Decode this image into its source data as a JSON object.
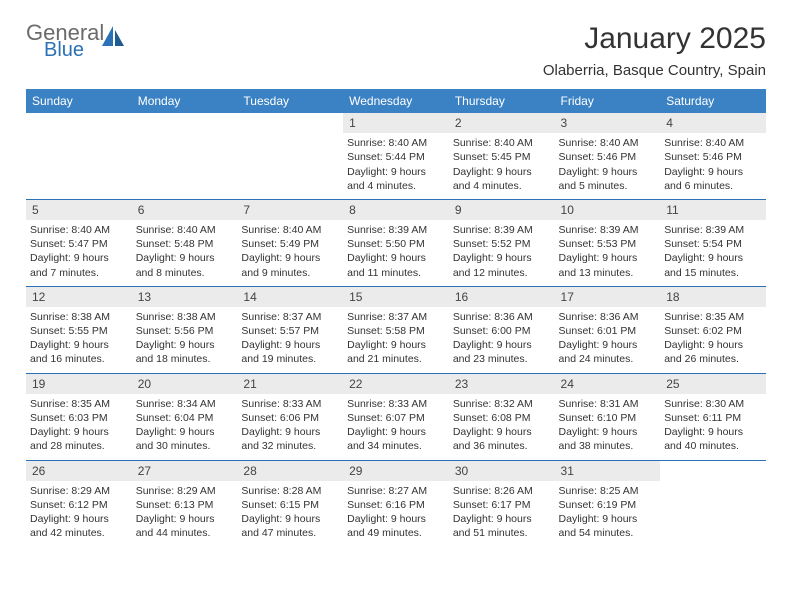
{
  "logo": {
    "general": "General",
    "blue": "Blue"
  },
  "title": "January 2025",
  "subtitle": "Olaberria, Basque Country, Spain",
  "colors": {
    "header_bg": "#3b82c4",
    "header_text": "#ffffff",
    "daynum_bg": "#ebebeb",
    "border": "#2a72b5",
    "logo_gray": "#6b6b6b",
    "logo_blue": "#2a72b5"
  },
  "weekdays": [
    "Sunday",
    "Monday",
    "Tuesday",
    "Wednesday",
    "Thursday",
    "Friday",
    "Saturday"
  ],
  "weeks": [
    [
      null,
      null,
      null,
      {
        "n": "1",
        "sr": "Sunrise: 8:40 AM",
        "ss": "Sunset: 5:44 PM",
        "d1": "Daylight: 9 hours",
        "d2": "and 4 minutes."
      },
      {
        "n": "2",
        "sr": "Sunrise: 8:40 AM",
        "ss": "Sunset: 5:45 PM",
        "d1": "Daylight: 9 hours",
        "d2": "and 4 minutes."
      },
      {
        "n": "3",
        "sr": "Sunrise: 8:40 AM",
        "ss": "Sunset: 5:46 PM",
        "d1": "Daylight: 9 hours",
        "d2": "and 5 minutes."
      },
      {
        "n": "4",
        "sr": "Sunrise: 8:40 AM",
        "ss": "Sunset: 5:46 PM",
        "d1": "Daylight: 9 hours",
        "d2": "and 6 minutes."
      }
    ],
    [
      {
        "n": "5",
        "sr": "Sunrise: 8:40 AM",
        "ss": "Sunset: 5:47 PM",
        "d1": "Daylight: 9 hours",
        "d2": "and 7 minutes."
      },
      {
        "n": "6",
        "sr": "Sunrise: 8:40 AM",
        "ss": "Sunset: 5:48 PM",
        "d1": "Daylight: 9 hours",
        "d2": "and 8 minutes."
      },
      {
        "n": "7",
        "sr": "Sunrise: 8:40 AM",
        "ss": "Sunset: 5:49 PM",
        "d1": "Daylight: 9 hours",
        "d2": "and 9 minutes."
      },
      {
        "n": "8",
        "sr": "Sunrise: 8:39 AM",
        "ss": "Sunset: 5:50 PM",
        "d1": "Daylight: 9 hours",
        "d2": "and 11 minutes."
      },
      {
        "n": "9",
        "sr": "Sunrise: 8:39 AM",
        "ss": "Sunset: 5:52 PM",
        "d1": "Daylight: 9 hours",
        "d2": "and 12 minutes."
      },
      {
        "n": "10",
        "sr": "Sunrise: 8:39 AM",
        "ss": "Sunset: 5:53 PM",
        "d1": "Daylight: 9 hours",
        "d2": "and 13 minutes."
      },
      {
        "n": "11",
        "sr": "Sunrise: 8:39 AM",
        "ss": "Sunset: 5:54 PM",
        "d1": "Daylight: 9 hours",
        "d2": "and 15 minutes."
      }
    ],
    [
      {
        "n": "12",
        "sr": "Sunrise: 8:38 AM",
        "ss": "Sunset: 5:55 PM",
        "d1": "Daylight: 9 hours",
        "d2": "and 16 minutes."
      },
      {
        "n": "13",
        "sr": "Sunrise: 8:38 AM",
        "ss": "Sunset: 5:56 PM",
        "d1": "Daylight: 9 hours",
        "d2": "and 18 minutes."
      },
      {
        "n": "14",
        "sr": "Sunrise: 8:37 AM",
        "ss": "Sunset: 5:57 PM",
        "d1": "Daylight: 9 hours",
        "d2": "and 19 minutes."
      },
      {
        "n": "15",
        "sr": "Sunrise: 8:37 AM",
        "ss": "Sunset: 5:58 PM",
        "d1": "Daylight: 9 hours",
        "d2": "and 21 minutes."
      },
      {
        "n": "16",
        "sr": "Sunrise: 8:36 AM",
        "ss": "Sunset: 6:00 PM",
        "d1": "Daylight: 9 hours",
        "d2": "and 23 minutes."
      },
      {
        "n": "17",
        "sr": "Sunrise: 8:36 AM",
        "ss": "Sunset: 6:01 PM",
        "d1": "Daylight: 9 hours",
        "d2": "and 24 minutes."
      },
      {
        "n": "18",
        "sr": "Sunrise: 8:35 AM",
        "ss": "Sunset: 6:02 PM",
        "d1": "Daylight: 9 hours",
        "d2": "and 26 minutes."
      }
    ],
    [
      {
        "n": "19",
        "sr": "Sunrise: 8:35 AM",
        "ss": "Sunset: 6:03 PM",
        "d1": "Daylight: 9 hours",
        "d2": "and 28 minutes."
      },
      {
        "n": "20",
        "sr": "Sunrise: 8:34 AM",
        "ss": "Sunset: 6:04 PM",
        "d1": "Daylight: 9 hours",
        "d2": "and 30 minutes."
      },
      {
        "n": "21",
        "sr": "Sunrise: 8:33 AM",
        "ss": "Sunset: 6:06 PM",
        "d1": "Daylight: 9 hours",
        "d2": "and 32 minutes."
      },
      {
        "n": "22",
        "sr": "Sunrise: 8:33 AM",
        "ss": "Sunset: 6:07 PM",
        "d1": "Daylight: 9 hours",
        "d2": "and 34 minutes."
      },
      {
        "n": "23",
        "sr": "Sunrise: 8:32 AM",
        "ss": "Sunset: 6:08 PM",
        "d1": "Daylight: 9 hours",
        "d2": "and 36 minutes."
      },
      {
        "n": "24",
        "sr": "Sunrise: 8:31 AM",
        "ss": "Sunset: 6:10 PM",
        "d1": "Daylight: 9 hours",
        "d2": "and 38 minutes."
      },
      {
        "n": "25",
        "sr": "Sunrise: 8:30 AM",
        "ss": "Sunset: 6:11 PM",
        "d1": "Daylight: 9 hours",
        "d2": "and 40 minutes."
      }
    ],
    [
      {
        "n": "26",
        "sr": "Sunrise: 8:29 AM",
        "ss": "Sunset: 6:12 PM",
        "d1": "Daylight: 9 hours",
        "d2": "and 42 minutes."
      },
      {
        "n": "27",
        "sr": "Sunrise: 8:29 AM",
        "ss": "Sunset: 6:13 PM",
        "d1": "Daylight: 9 hours",
        "d2": "and 44 minutes."
      },
      {
        "n": "28",
        "sr": "Sunrise: 8:28 AM",
        "ss": "Sunset: 6:15 PM",
        "d1": "Daylight: 9 hours",
        "d2": "and 47 minutes."
      },
      {
        "n": "29",
        "sr": "Sunrise: 8:27 AM",
        "ss": "Sunset: 6:16 PM",
        "d1": "Daylight: 9 hours",
        "d2": "and 49 minutes."
      },
      {
        "n": "30",
        "sr": "Sunrise: 8:26 AM",
        "ss": "Sunset: 6:17 PM",
        "d1": "Daylight: 9 hours",
        "d2": "and 51 minutes."
      },
      {
        "n": "31",
        "sr": "Sunrise: 8:25 AM",
        "ss": "Sunset: 6:19 PM",
        "d1": "Daylight: 9 hours",
        "d2": "and 54 minutes."
      },
      null
    ]
  ]
}
